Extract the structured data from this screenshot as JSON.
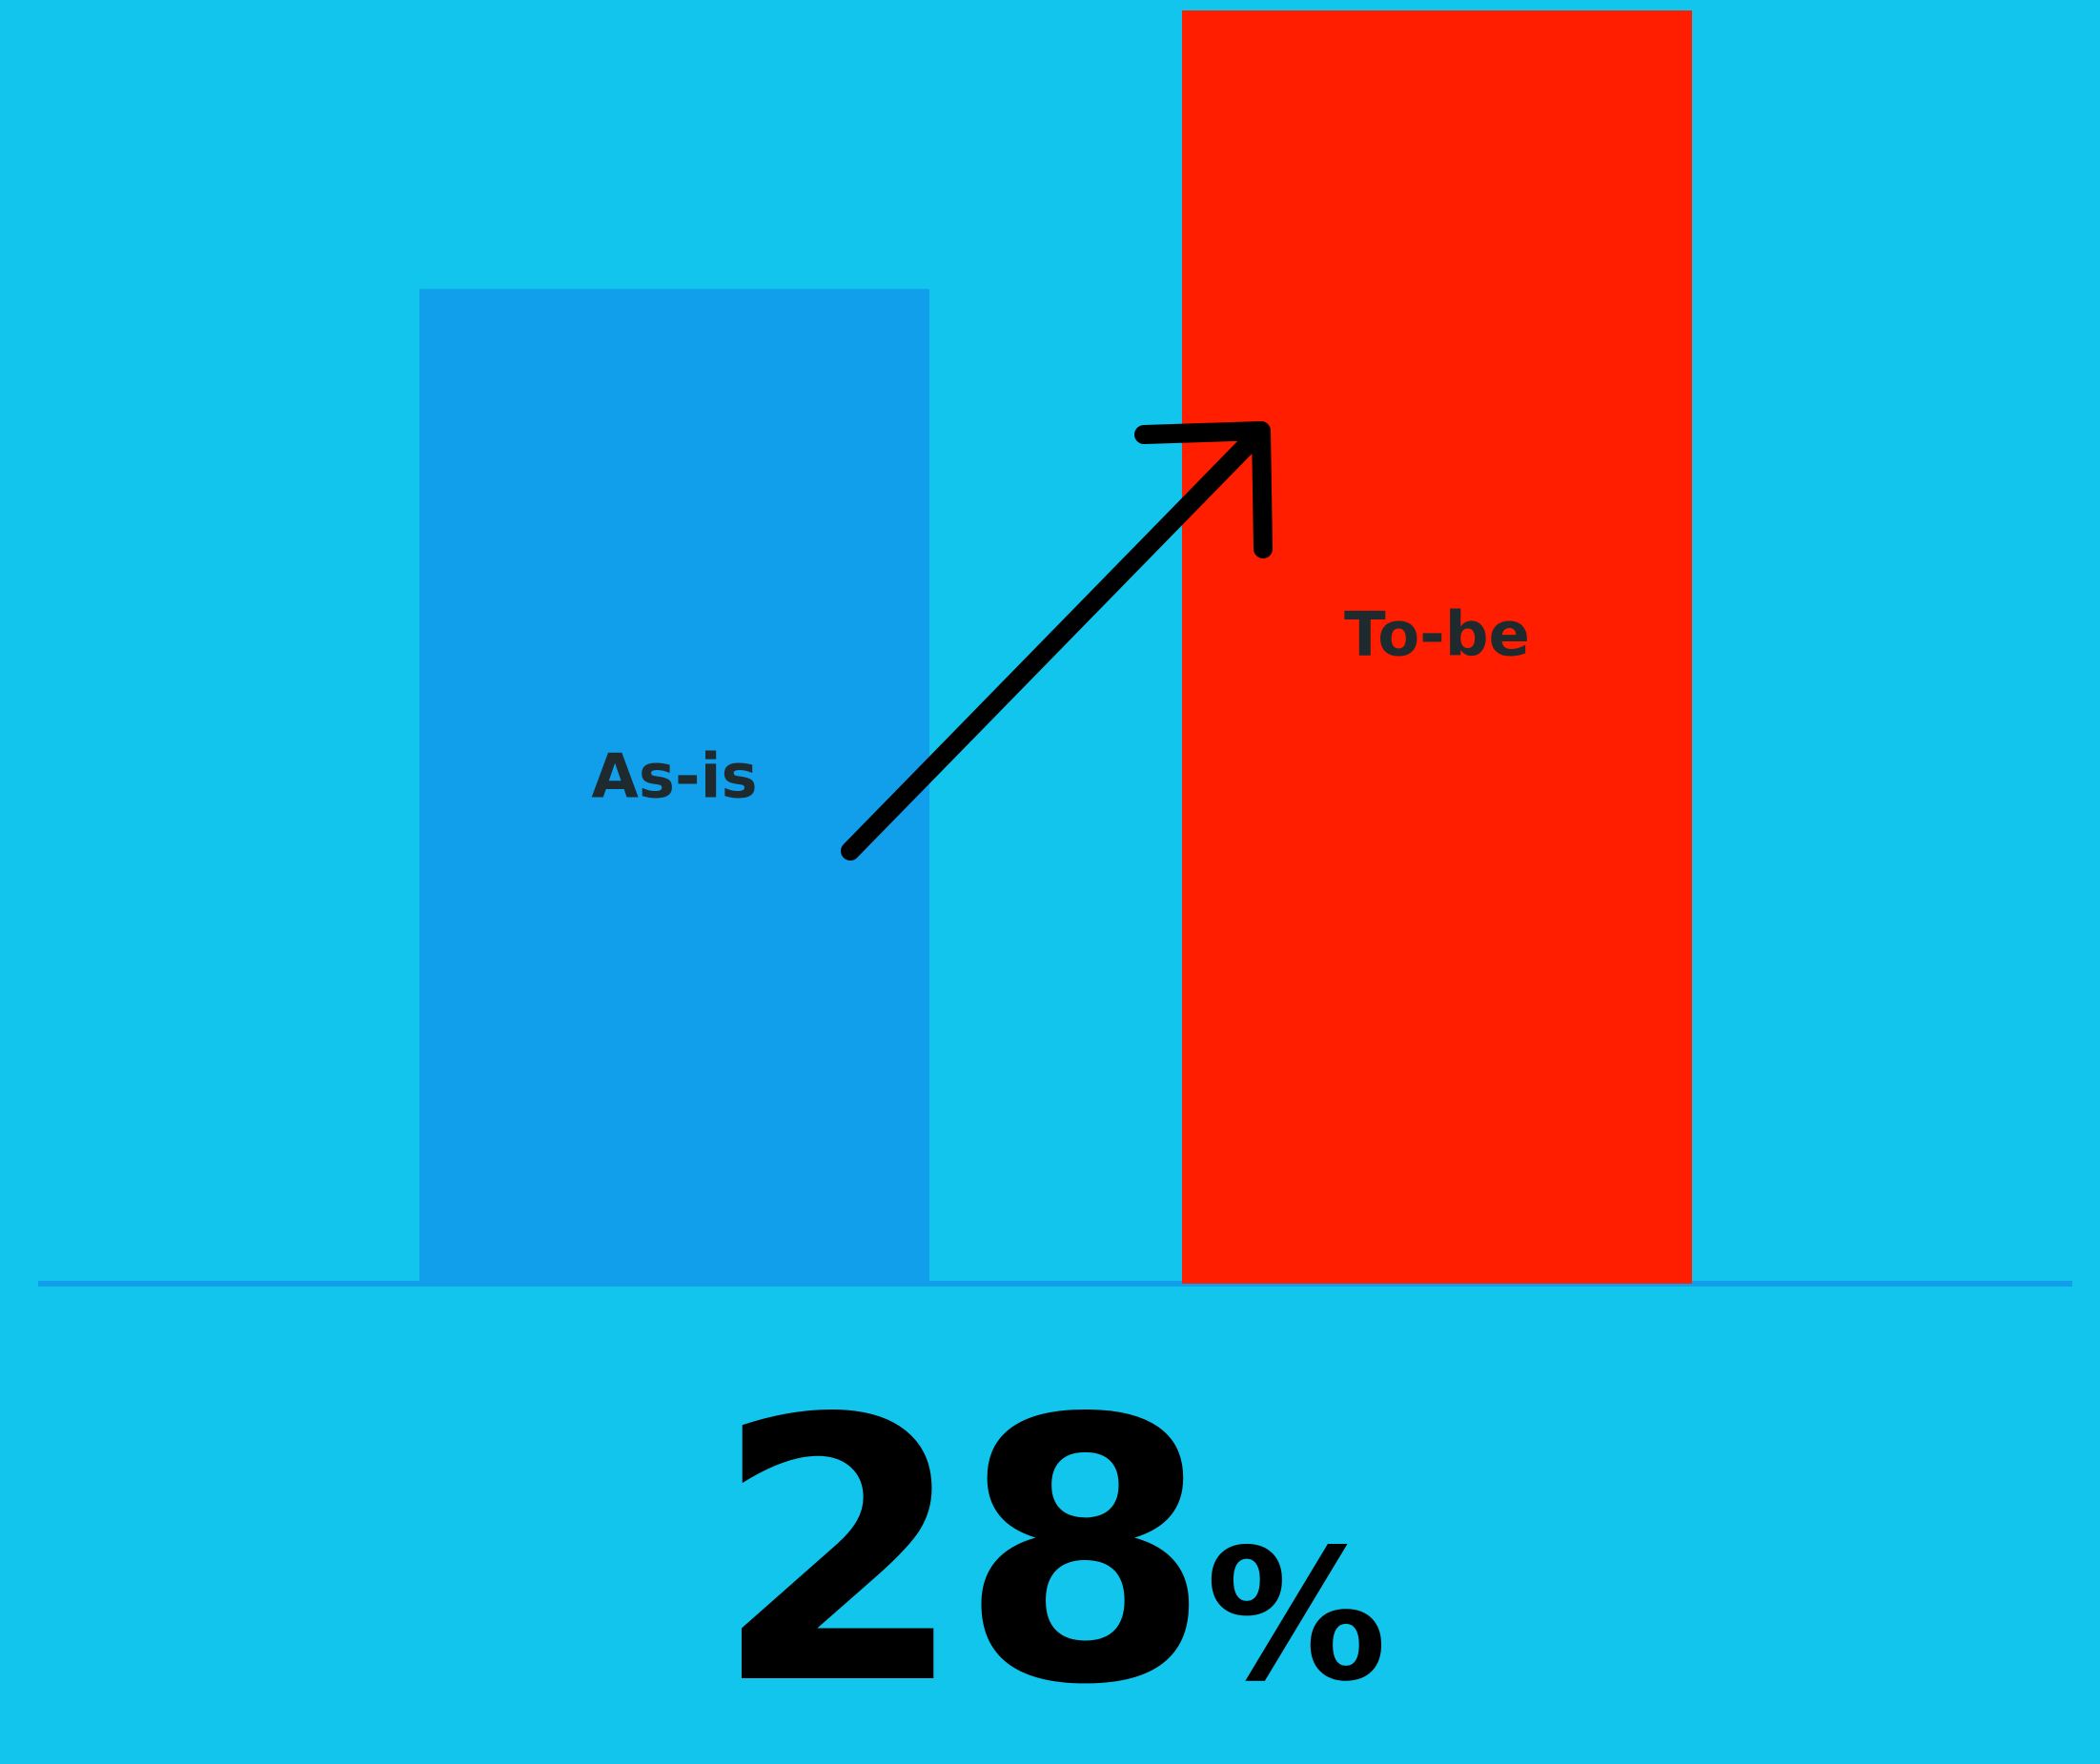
{
  "colors": {
    "background": "#12c5ec",
    "as_is_bar": "#119fec",
    "to_be_bar": "#ff1e00",
    "baseline": "#119fec",
    "arrow": "#000000",
    "label_text": "#1f2a2e"
  },
  "icons": {
    "arrow": "arrow-up-right-icon"
  },
  "headline": {
    "value": "28",
    "unit": "%"
  },
  "chart_data": {
    "type": "bar",
    "categories": [
      "As-is",
      "To-be"
    ],
    "values": [
      100,
      128
    ],
    "value_unit": "relative",
    "title": "",
    "xlabel": "",
    "ylabel": "",
    "ylim": [
      0,
      128
    ],
    "grid": false,
    "legend": "none",
    "labels_inside_bars": true,
    "annotation": "28%"
  }
}
